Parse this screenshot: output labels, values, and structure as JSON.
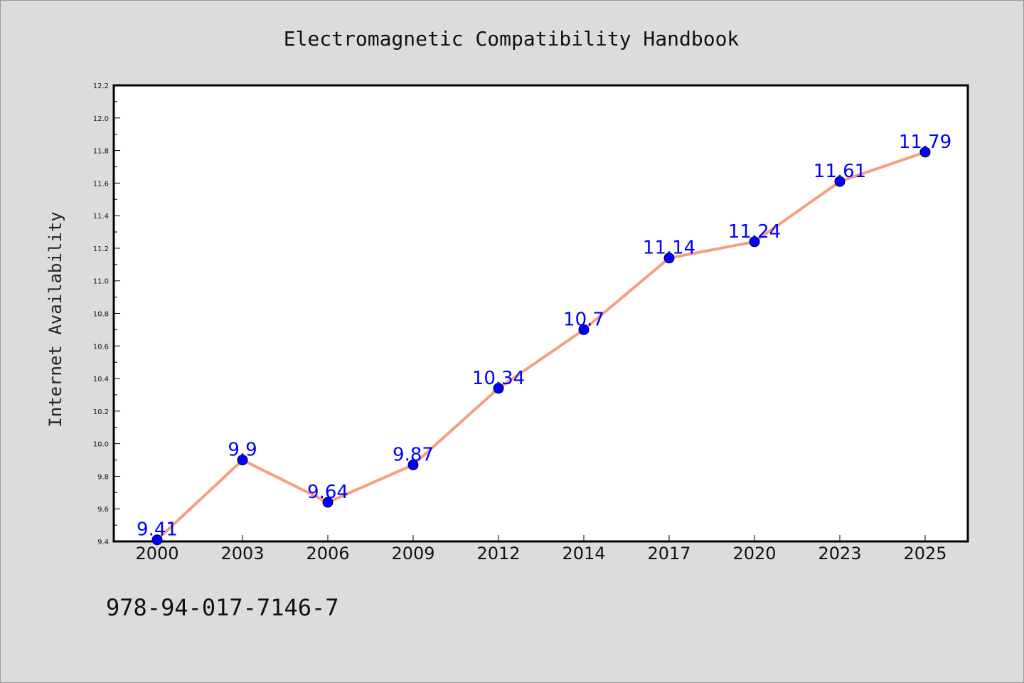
{
  "chart_data": {
    "type": "line",
    "title": "Electromagnetic Compatibility Handbook",
    "xlabel": "",
    "ylabel": "Internet Availability",
    "categories": [
      "2000",
      "2003",
      "2006",
      "2009",
      "2012",
      "2014",
      "2017",
      "2020",
      "2023",
      "2025"
    ],
    "series": [
      {
        "values": [
          9.41,
          9.9,
          9.64,
          9.87,
          10.34,
          10.7,
          11.14,
          11.24,
          11.61,
          11.79
        ],
        "data_labels": [
          "9.41",
          "9.9",
          "9.64",
          "9.87",
          "10.34",
          "10.7",
          "11.14",
          "11.24",
          "11.61",
          "11.79"
        ]
      }
    ],
    "ylim": [
      9.4,
      12.2
    ],
    "yticks": [
      "9.4",
      "9.6",
      "9.8",
      "10.0",
      "10.2",
      "10.4",
      "10.6",
      "10.8",
      "11.0",
      "11.2",
      "11.4",
      "11.6",
      "11.8",
      "12.0",
      "12.2"
    ],
    "grid": false,
    "legend": "none",
    "colors": {
      "line": "#f4a07f",
      "marker": "#0000ff",
      "data_label": "#0000ff",
      "background": "#dcdcdc",
      "plot_background": "#ffffff"
    }
  },
  "footer": {
    "isbn": "978-94-017-7146-7"
  }
}
